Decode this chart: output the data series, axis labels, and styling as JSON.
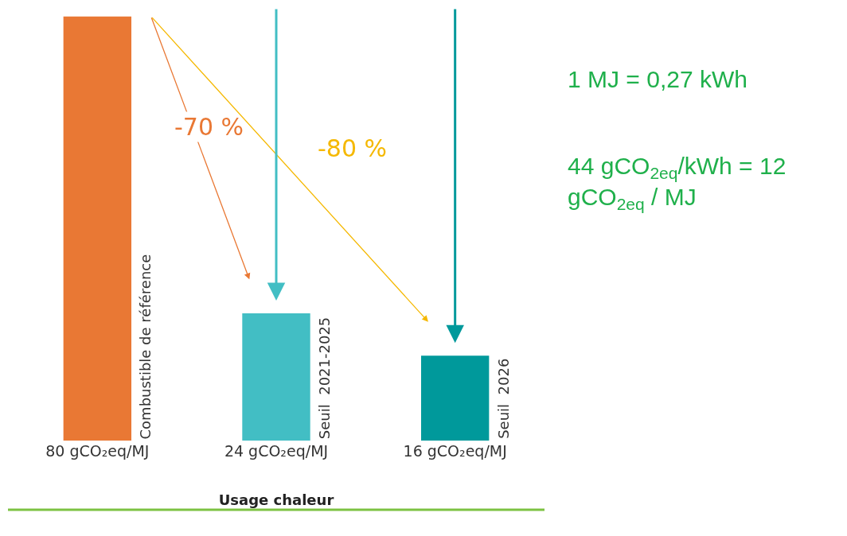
{
  "chart_data": {
    "type": "bar",
    "xlabel": "Usage chaleur",
    "categories": [
      "Combustible de référence",
      "Seuil  2021-2025",
      "Seuil  2026"
    ],
    "values": [
      80,
      24,
      16
    ],
    "colors": [
      "#e97834",
      "#42bec4",
      "#00999b"
    ],
    "value_labels": [
      "80 gCO₂eq/MJ",
      "24 gCO₂eq/MJ",
      "16 gCO₂eq/MJ"
    ],
    "annotations": [
      "-70 %",
      "-80 %",
      "1 MJ = 0,27 kWh",
      "44 gCO$_{2eq}$/kWh = 12 gCO$_{2eq}$ / MJ"
    ],
    "legend": false
  }
}
